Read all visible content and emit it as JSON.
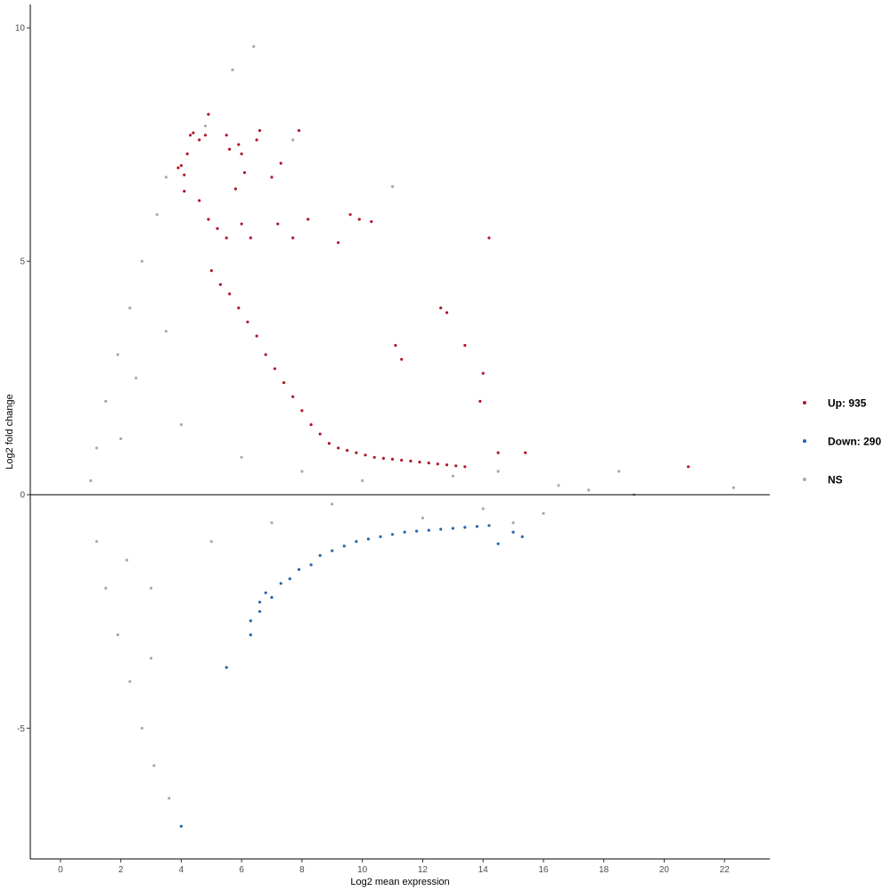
{
  "chart_data": {
    "type": "scatter",
    "xlabel": "Log2 mean expression",
    "ylabel": "Log2 fold change",
    "xlim": [
      -1,
      23.5
    ],
    "ylim": [
      -7.8,
      10.5
    ],
    "x_ticks": [
      0,
      2,
      4,
      6,
      8,
      10,
      12,
      14,
      16,
      18,
      20,
      22
    ],
    "y_ticks": [
      -5,
      0,
      5,
      10
    ],
    "reference_line_y": 0,
    "grid": false,
    "legend_position": "right",
    "colors": {
      "up": "#b2182b",
      "down": "#2166ac",
      "ns": "#a9a9a9"
    },
    "legend": [
      {
        "key": "up",
        "label": "Up: 935"
      },
      {
        "key": "down",
        "label": "Down: 290"
      },
      {
        "key": "ns",
        "label": "NS"
      }
    ],
    "series": [
      {
        "key": "up",
        "points": [
          [
            3.9,
            7.0
          ],
          [
            4.0,
            7.05
          ],
          [
            4.1,
            6.85
          ],
          [
            4.2,
            7.3
          ],
          [
            4.3,
            7.7
          ],
          [
            4.4,
            7.75
          ],
          [
            4.6,
            7.6
          ],
          [
            4.8,
            7.7
          ],
          [
            4.9,
            8.15
          ],
          [
            5.5,
            7.7
          ],
          [
            5.6,
            7.4
          ],
          [
            5.8,
            6.55
          ],
          [
            5.9,
            7.5
          ],
          [
            6.0,
            7.3
          ],
          [
            6.1,
            6.9
          ],
          [
            6.5,
            7.6
          ],
          [
            6.6,
            7.8
          ],
          [
            7.0,
            6.8
          ],
          [
            7.3,
            7.1
          ],
          [
            7.9,
            7.8
          ],
          [
            4.1,
            6.5
          ],
          [
            4.6,
            6.3
          ],
          [
            4.9,
            5.9
          ],
          [
            5.2,
            5.7
          ],
          [
            5.5,
            5.5
          ],
          [
            6.0,
            5.8
          ],
          [
            6.3,
            5.5
          ],
          [
            7.2,
            5.8
          ],
          [
            7.7,
            5.5
          ],
          [
            8.2,
            5.9
          ],
          [
            9.6,
            6.0
          ],
          [
            9.9,
            5.9
          ],
          [
            10.3,
            5.85
          ],
          [
            9.2,
            5.4
          ],
          [
            14.2,
            5.5
          ],
          [
            13.4,
            3.2
          ],
          [
            13.9,
            2.0
          ],
          [
            14.0,
            2.6
          ],
          [
            12.6,
            4.0
          ],
          [
            12.8,
            3.9
          ],
          [
            11.1,
            3.2
          ],
          [
            11.3,
            2.9
          ],
          [
            14.5,
            0.9
          ],
          [
            15.4,
            0.9
          ],
          [
            20.8,
            0.6
          ],
          [
            5.0,
            4.8
          ],
          [
            5.3,
            4.5
          ],
          [
            5.6,
            4.3
          ],
          [
            5.9,
            4.0
          ],
          [
            6.2,
            3.7
          ],
          [
            6.5,
            3.4
          ],
          [
            6.8,
            3.0
          ],
          [
            7.1,
            2.7
          ],
          [
            7.4,
            2.4
          ],
          [
            7.7,
            2.1
          ],
          [
            8.0,
            1.8
          ],
          [
            8.3,
            1.5
          ],
          [
            8.6,
            1.3
          ],
          [
            8.9,
            1.1
          ],
          [
            9.2,
            1.0
          ],
          [
            9.5,
            0.95
          ],
          [
            9.8,
            0.9
          ],
          [
            10.1,
            0.85
          ],
          [
            10.4,
            0.8
          ],
          [
            10.7,
            0.78
          ],
          [
            11.0,
            0.76
          ],
          [
            11.3,
            0.74
          ],
          [
            11.6,
            0.72
          ],
          [
            11.9,
            0.7
          ],
          [
            12.2,
            0.68
          ],
          [
            12.5,
            0.66
          ],
          [
            12.8,
            0.64
          ],
          [
            13.1,
            0.62
          ],
          [
            13.4,
            0.6
          ]
        ]
      },
      {
        "key": "down",
        "points": [
          [
            4.0,
            -7.1
          ],
          [
            5.5,
            -3.7
          ],
          [
            6.3,
            -3.0
          ],
          [
            6.3,
            -2.7
          ],
          [
            6.6,
            -2.5
          ],
          [
            6.6,
            -2.3
          ],
          [
            6.8,
            -2.1
          ],
          [
            7.0,
            -2.2
          ],
          [
            7.3,
            -1.9
          ],
          [
            7.6,
            -1.8
          ],
          [
            7.9,
            -1.6
          ],
          [
            8.3,
            -1.5
          ],
          [
            8.6,
            -1.3
          ],
          [
            9.0,
            -1.2
          ],
          [
            9.4,
            -1.1
          ],
          [
            9.8,
            -1.0
          ],
          [
            10.2,
            -0.95
          ],
          [
            10.6,
            -0.9
          ],
          [
            11.0,
            -0.85
          ],
          [
            11.4,
            -0.8
          ],
          [
            11.8,
            -0.78
          ],
          [
            12.2,
            -0.76
          ],
          [
            12.6,
            -0.74
          ],
          [
            13.0,
            -0.72
          ],
          [
            13.4,
            -0.7
          ],
          [
            13.8,
            -0.68
          ],
          [
            14.2,
            -0.66
          ],
          [
            14.5,
            -1.05
          ],
          [
            15.0,
            -0.8
          ],
          [
            15.3,
            -0.9
          ]
        ]
      },
      {
        "key": "ns",
        "points": [
          [
            6.4,
            9.6
          ],
          [
            5.7,
            9.1
          ],
          [
            4.8,
            7.9
          ],
          [
            7.7,
            7.6
          ],
          [
            3.5,
            6.8
          ],
          [
            3.2,
            6.0
          ],
          [
            2.7,
            5.0
          ],
          [
            2.3,
            4.0
          ],
          [
            1.9,
            3.0
          ],
          [
            1.5,
            2.0
          ],
          [
            1.2,
            1.0
          ],
          [
            1.0,
            0.3
          ],
          [
            1.2,
            -1.0
          ],
          [
            1.5,
            -2.0
          ],
          [
            1.9,
            -3.0
          ],
          [
            2.3,
            -4.0
          ],
          [
            2.7,
            -5.0
          ],
          [
            3.1,
            -5.8
          ],
          [
            3.6,
            -6.5
          ],
          [
            11.0,
            6.6
          ],
          [
            14.5,
            0.5
          ],
          [
            16.5,
            0.2
          ],
          [
            18.5,
            0.5
          ],
          [
            22.3,
            0.15
          ],
          [
            19.0,
            0.0
          ],
          [
            17.5,
            0.1
          ],
          [
            16.0,
            -0.4
          ],
          [
            15.0,
            -0.6
          ],
          [
            14.0,
            -0.3
          ],
          [
            13.0,
            0.4
          ],
          [
            12.0,
            -0.5
          ],
          [
            10.0,
            0.3
          ],
          [
            9.0,
            -0.2
          ],
          [
            8.0,
            0.5
          ],
          [
            7.0,
            -0.6
          ],
          [
            6.0,
            0.8
          ],
          [
            5.0,
            -1.0
          ],
          [
            4.0,
            1.5
          ],
          [
            3.0,
            -2.0
          ],
          [
            2.5,
            2.5
          ],
          [
            3.5,
            3.5
          ],
          [
            3.0,
            -3.5
          ],
          [
            2.0,
            1.2
          ],
          [
            2.2,
            -1.4
          ]
        ]
      }
    ]
  }
}
